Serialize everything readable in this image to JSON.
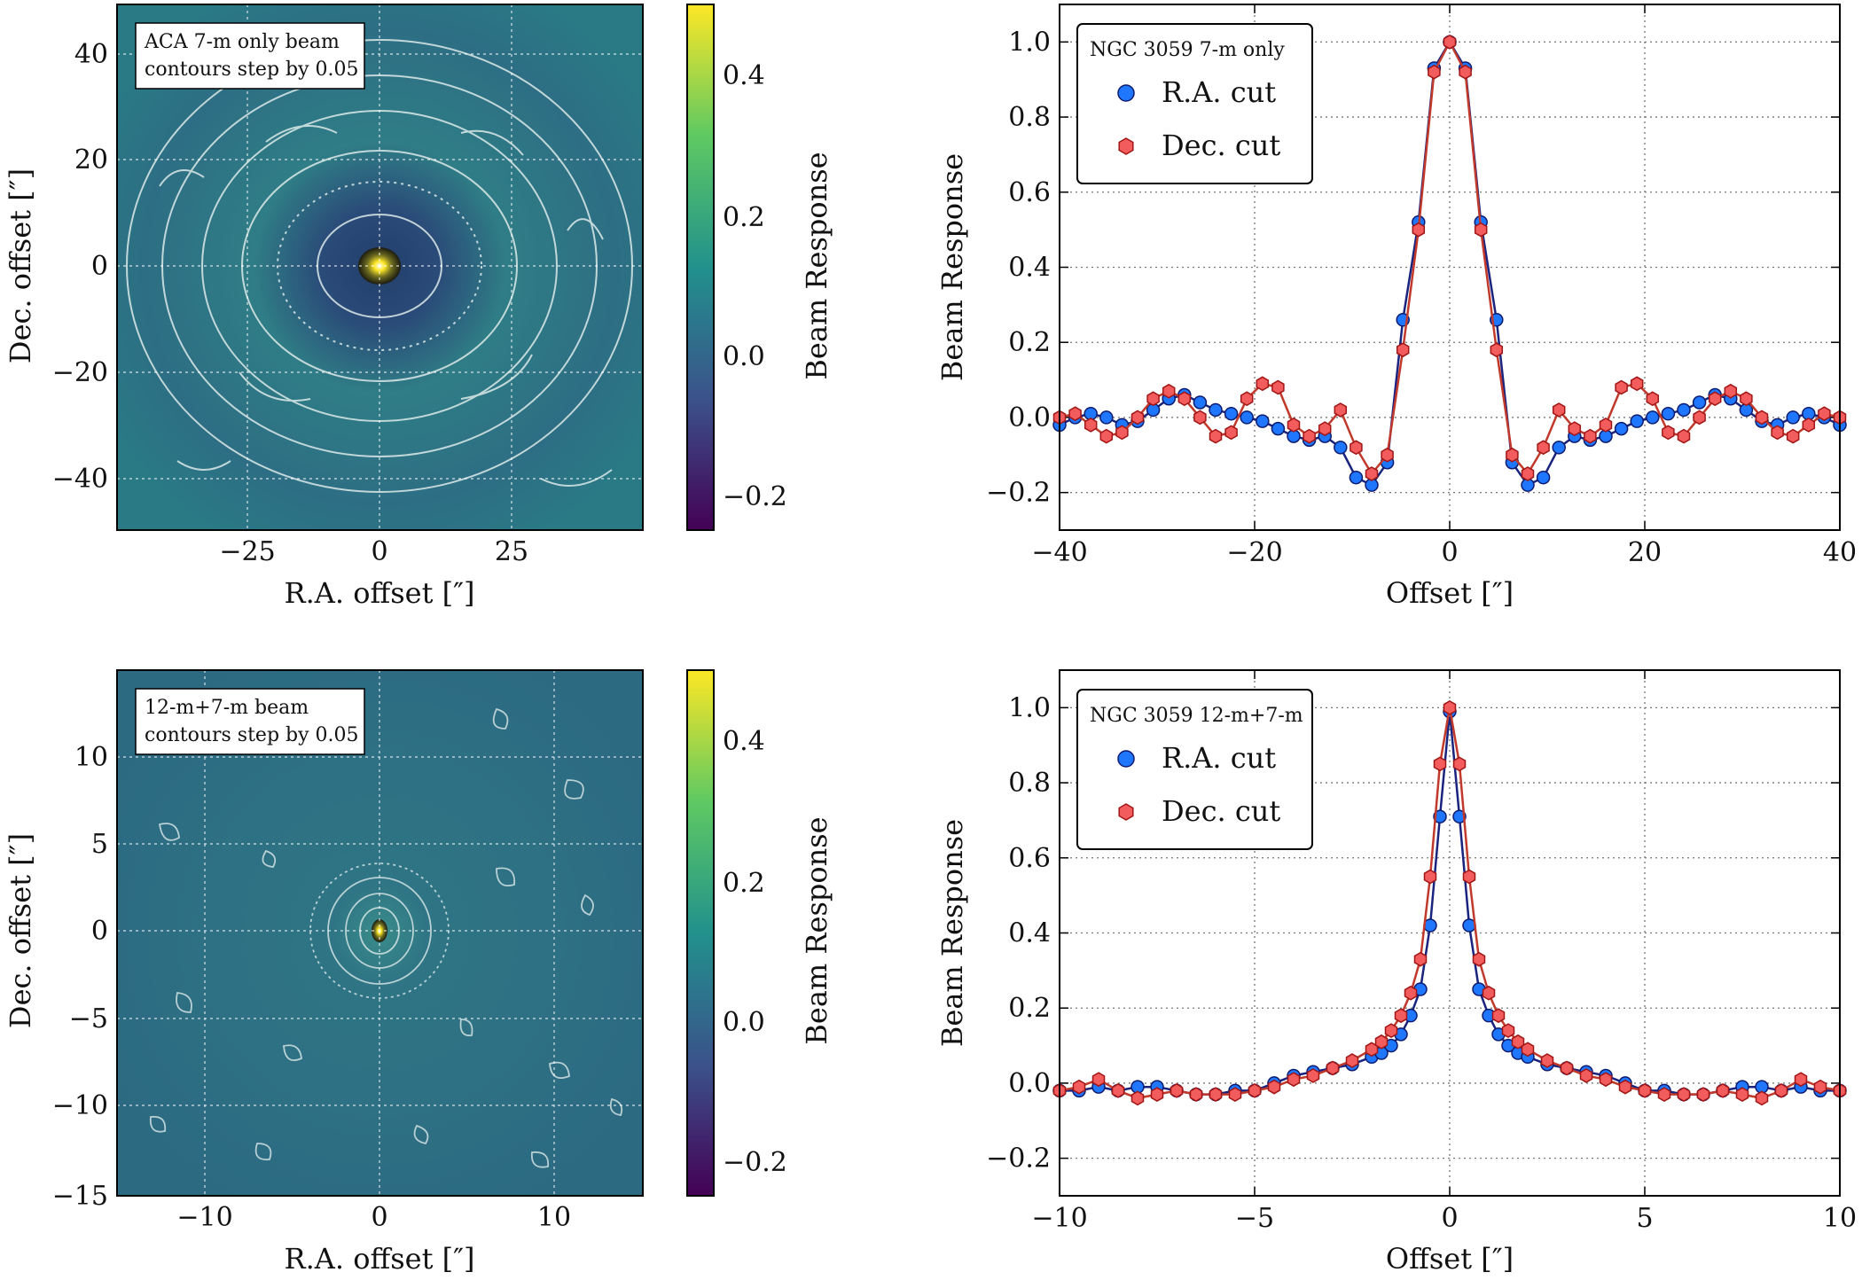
{
  "colors": {
    "ra": "#1f77ff",
    "ra_line": "#1a237e",
    "ra_edge": "#0d1b6e",
    "dec": "#f25c5c",
    "dec_line": "#c0392b",
    "dec_edge": "#a11515",
    "cmap": [
      "#440154",
      "#3b528b",
      "#21918c",
      "#5ec962",
      "#fde725"
    ],
    "map_bg": "#2f6f85",
    "contour": "#e8f0f0"
  },
  "panels": {
    "tl": {
      "annotation": [
        "ACA 7-m only beam",
        "contours step by 0.05"
      ],
      "xlabel": "R.A. offset [″]",
      "ylabel": "Dec. offset [″]",
      "xticks": [
        "−25",
        "0",
        "25"
      ],
      "yticks": [
        "40",
        "20",
        "0",
        "−20",
        "−40"
      ]
    },
    "bl": {
      "annotation": [
        "12-m+7-m beam",
        "contours step by 0.05"
      ],
      "xlabel": "R.A. offset [″]",
      "ylabel": "Dec. offset [″]",
      "xticks": [
        "−10",
        "0",
        "10"
      ],
      "yticks": [
        "10",
        "5",
        "0",
        "−5",
        "−10",
        "−15"
      ]
    },
    "cbar_top": {
      "label": "Beam Response",
      "ticks": [
        "0.4",
        "0.2",
        "0.0",
        "−0.2"
      ]
    },
    "cbar_bottom": {
      "label": "Beam Response",
      "ticks": [
        "0.4",
        "0.2",
        "0.0",
        "−0.2"
      ]
    }
  },
  "chart_data": [
    {
      "type": "line",
      "title": "NGC 3059 7-m only",
      "xlabel": "Offset [″]",
      "ylabel": "Beam Response",
      "xlim": [
        -40,
        40
      ],
      "ylim": [
        -0.3,
        1.1
      ],
      "xticks": [
        -40,
        -20,
        0,
        20,
        40
      ],
      "yticks": [
        -0.2,
        0.0,
        0.2,
        0.4,
        0.6,
        0.8,
        1.0
      ],
      "xtick_labels": [
        "−40",
        "−20",
        "0",
        "20",
        "40"
      ],
      "ytick_labels": [
        "−0.2",
        "0.0",
        "0.2",
        "0.4",
        "0.6",
        "0.8",
        "1.0"
      ],
      "grid": true,
      "legend": "top-left",
      "series": [
        {
          "name": "R.A. cut",
          "x": [
            -40,
            -38.4,
            -36.8,
            -35.2,
            -33.6,
            -32,
            -30.4,
            -28.8,
            -27.2,
            -25.6,
            -24,
            -22.4,
            -20.8,
            -19.2,
            -17.6,
            -16,
            -14.4,
            -12.8,
            -11.2,
            -9.6,
            -8,
            -6.4,
            -4.8,
            -3.2,
            -1.6,
            0,
            1.6,
            3.2,
            4.8,
            6.4,
            8,
            9.6,
            11.2,
            12.8,
            14.4,
            16,
            17.6,
            19.2,
            20.8,
            22.4,
            24,
            25.6,
            27.2,
            28.8,
            30.4,
            32,
            33.6,
            35.2,
            36.8,
            38.4,
            40
          ],
          "y": [
            -0.02,
            0.0,
            0.01,
            0.0,
            -0.02,
            -0.01,
            0.02,
            0.05,
            0.06,
            0.04,
            0.02,
            0.01,
            0.0,
            -0.01,
            -0.03,
            -0.05,
            -0.06,
            -0.05,
            -0.08,
            -0.16,
            -0.18,
            -0.12,
            0.26,
            0.52,
            0.93,
            1.0,
            0.93,
            0.52,
            0.26,
            -0.12,
            -0.18,
            -0.16,
            -0.08,
            -0.05,
            -0.06,
            -0.05,
            -0.03,
            -0.01,
            0.0,
            0.01,
            0.02,
            0.04,
            0.06,
            0.05,
            0.02,
            -0.01,
            -0.02,
            0.0,
            0.01,
            0.0,
            -0.02
          ]
        },
        {
          "name": "Dec. cut",
          "x": [
            -40,
            -38.4,
            -36.8,
            -35.2,
            -33.6,
            -32,
            -30.4,
            -28.8,
            -27.2,
            -25.6,
            -24,
            -22.4,
            -20.8,
            -19.2,
            -17.6,
            -16,
            -14.4,
            -12.8,
            -11.2,
            -9.6,
            -8,
            -6.4,
            -4.8,
            -3.2,
            -1.6,
            0,
            1.6,
            3.2,
            4.8,
            6.4,
            8,
            9.6,
            11.2,
            12.8,
            14.4,
            16,
            17.6,
            19.2,
            20.8,
            22.4,
            24,
            25.6,
            27.2,
            28.8,
            30.4,
            32,
            33.6,
            35.2,
            36.8,
            38.4,
            40
          ],
          "y": [
            0.0,
            0.01,
            -0.02,
            -0.05,
            -0.04,
            0.0,
            0.05,
            0.07,
            0.05,
            0.0,
            -0.05,
            -0.04,
            0.05,
            0.09,
            0.08,
            -0.02,
            -0.05,
            -0.03,
            0.02,
            -0.08,
            -0.15,
            -0.1,
            0.18,
            0.5,
            0.92,
            1.0,
            0.92,
            0.5,
            0.18,
            -0.1,
            -0.15,
            -0.08,
            0.02,
            -0.03,
            -0.05,
            -0.02,
            0.08,
            0.09,
            0.05,
            -0.04,
            -0.05,
            0.0,
            0.05,
            0.07,
            0.05,
            0.0,
            -0.04,
            -0.05,
            -0.02,
            0.01,
            0.0
          ]
        }
      ]
    },
    {
      "type": "line",
      "title": "NGC 3059 12-m+7-m",
      "xlabel": "Offset [″]",
      "ylabel": "Beam Response",
      "xlim": [
        -10,
        10
      ],
      "ylim": [
        -0.3,
        1.1
      ],
      "xticks": [
        -10,
        -5,
        0,
        5,
        10
      ],
      "yticks": [
        -0.2,
        0.0,
        0.2,
        0.4,
        0.6,
        0.8,
        1.0
      ],
      "xtick_labels": [
        "−10",
        "−5",
        "0",
        "5",
        "10"
      ],
      "ytick_labels": [
        "−0.2",
        "0.0",
        "0.2",
        "0.4",
        "0.6",
        "0.8",
        "1.0"
      ],
      "grid": true,
      "legend": "top-left",
      "series": [
        {
          "name": "R.A. cut",
          "x": [
            -10,
            -9.5,
            -9,
            -8.5,
            -8,
            -7.5,
            -7,
            -6.5,
            -6,
            -5.5,
            -5,
            -4.5,
            -4,
            -3.5,
            -3,
            -2.5,
            -2,
            -1.75,
            -1.5,
            -1.25,
            -1,
            -0.75,
            -0.5,
            -0.25,
            0,
            0.25,
            0.5,
            0.75,
            1,
            1.25,
            1.5,
            1.75,
            2,
            2.5,
            3,
            3.5,
            4,
            4.5,
            5,
            5.5,
            6,
            6.5,
            7,
            7.5,
            8,
            8.5,
            9,
            9.5,
            10
          ],
          "y": [
            -0.02,
            -0.02,
            -0.01,
            -0.02,
            -0.01,
            -0.01,
            -0.02,
            -0.03,
            -0.03,
            -0.02,
            -0.02,
            0.0,
            0.02,
            0.03,
            0.04,
            0.05,
            0.07,
            0.08,
            0.1,
            0.13,
            0.18,
            0.25,
            0.42,
            0.71,
            0.99,
            0.71,
            0.42,
            0.25,
            0.18,
            0.13,
            0.1,
            0.08,
            0.07,
            0.05,
            0.04,
            0.03,
            0.02,
            0.0,
            -0.02,
            -0.02,
            -0.03,
            -0.03,
            -0.02,
            -0.01,
            -0.01,
            -0.02,
            -0.01,
            -0.02,
            -0.02
          ]
        },
        {
          "name": "Dec. cut",
          "x": [
            -10,
            -9.5,
            -9,
            -8.5,
            -8,
            -7.5,
            -7,
            -6.5,
            -6,
            -5.5,
            -5,
            -4.5,
            -4,
            -3.5,
            -3,
            -2.5,
            -2,
            -1.75,
            -1.5,
            -1.25,
            -1,
            -0.75,
            -0.5,
            -0.25,
            0,
            0.25,
            0.5,
            0.75,
            1,
            1.25,
            1.5,
            1.75,
            2,
            2.5,
            3,
            3.5,
            4,
            4.5,
            5,
            5.5,
            6,
            6.5,
            7,
            7.5,
            8,
            8.5,
            9,
            9.5,
            10
          ],
          "y": [
            -0.02,
            -0.01,
            0.01,
            -0.02,
            -0.04,
            -0.03,
            -0.02,
            -0.03,
            -0.03,
            -0.03,
            -0.02,
            -0.01,
            0.01,
            0.02,
            0.04,
            0.06,
            0.09,
            0.11,
            0.14,
            0.18,
            0.24,
            0.33,
            0.55,
            0.85,
            1.0,
            0.85,
            0.55,
            0.33,
            0.24,
            0.18,
            0.14,
            0.11,
            0.09,
            0.06,
            0.04,
            0.02,
            0.01,
            -0.01,
            -0.02,
            -0.03,
            -0.03,
            -0.03,
            -0.02,
            -0.03,
            -0.04,
            -0.02,
            0.01,
            -0.01,
            -0.02
          ]
        }
      ]
    }
  ]
}
